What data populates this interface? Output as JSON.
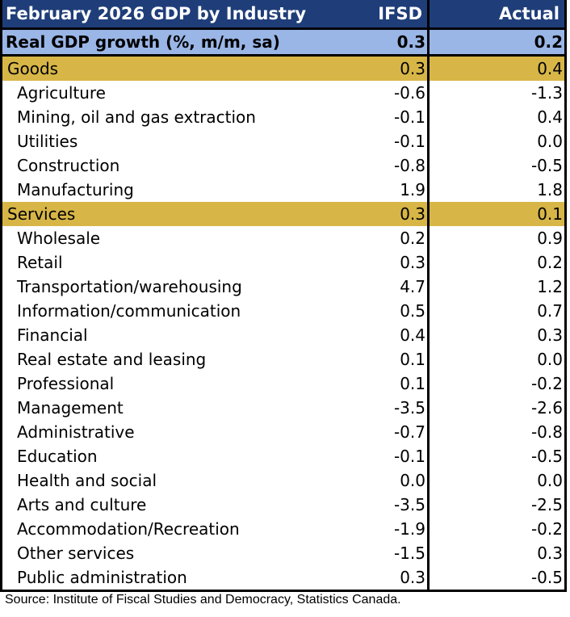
{
  "header": {
    "title": "February 2026 GDP by Industry",
    "col_ifsd": "IFSD",
    "col_actual": "Actual"
  },
  "gdp": {
    "label": "Real GDP growth (%, m/m, sa)",
    "ifsd": "0.3",
    "actual": "0.2"
  },
  "goods": {
    "label": "Goods",
    "ifsd": "0.3",
    "actual": "0.4",
    "rows": [
      {
        "label": "Agriculture",
        "ifsd": "-0.6",
        "actual": "-1.3"
      },
      {
        "label": "Mining, oil and gas extraction",
        "ifsd": "-0.1",
        "actual": "0.4"
      },
      {
        "label": "Utilities",
        "ifsd": "-0.1",
        "actual": "0.0"
      },
      {
        "label": "Construction",
        "ifsd": "-0.8",
        "actual": "-0.5"
      },
      {
        "label": "Manufacturing",
        "ifsd": "1.9",
        "actual": "1.8"
      }
    ]
  },
  "services": {
    "label": "Services",
    "ifsd": "0.3",
    "actual": "0.1",
    "rows": [
      {
        "label": "Wholesale",
        "ifsd": "0.2",
        "actual": "0.9"
      },
      {
        "label": "Retail",
        "ifsd": "0.3",
        "actual": "0.2"
      },
      {
        "label": "Transportation/warehousing",
        "ifsd": "4.7",
        "actual": "1.2"
      },
      {
        "label": "Information/communication",
        "ifsd": "0.5",
        "actual": "0.7"
      },
      {
        "label": "Financial",
        "ifsd": "0.4",
        "actual": "0.3"
      },
      {
        "label": "Real estate and leasing",
        "ifsd": "0.1",
        "actual": "0.0"
      },
      {
        "label": "Professional",
        "ifsd": "0.1",
        "actual": "-0.2"
      },
      {
        "label": "Management",
        "ifsd": "-3.5",
        "actual": "-2.6"
      },
      {
        "label": "Administrative",
        "ifsd": "-0.7",
        "actual": "-0.8"
      },
      {
        "label": "Education",
        "ifsd": "-0.1",
        "actual": "-0.5"
      },
      {
        "label": "Health and social",
        "ifsd": "0.0",
        "actual": "0.0"
      },
      {
        "label": "Arts and culture",
        "ifsd": "-3.5",
        "actual": "-2.5"
      },
      {
        "label": "Accommodation/Recreation",
        "ifsd": "-1.9",
        "actual": "-0.2"
      },
      {
        "label": "Other services",
        "ifsd": "-1.5",
        "actual": "0.3"
      },
      {
        "label": "Public administration",
        "ifsd": "0.3",
        "actual": "-0.5"
      }
    ]
  },
  "source": "Source: Institute of Fiscal Studies and Democracy,  Statistics Canada."
}
